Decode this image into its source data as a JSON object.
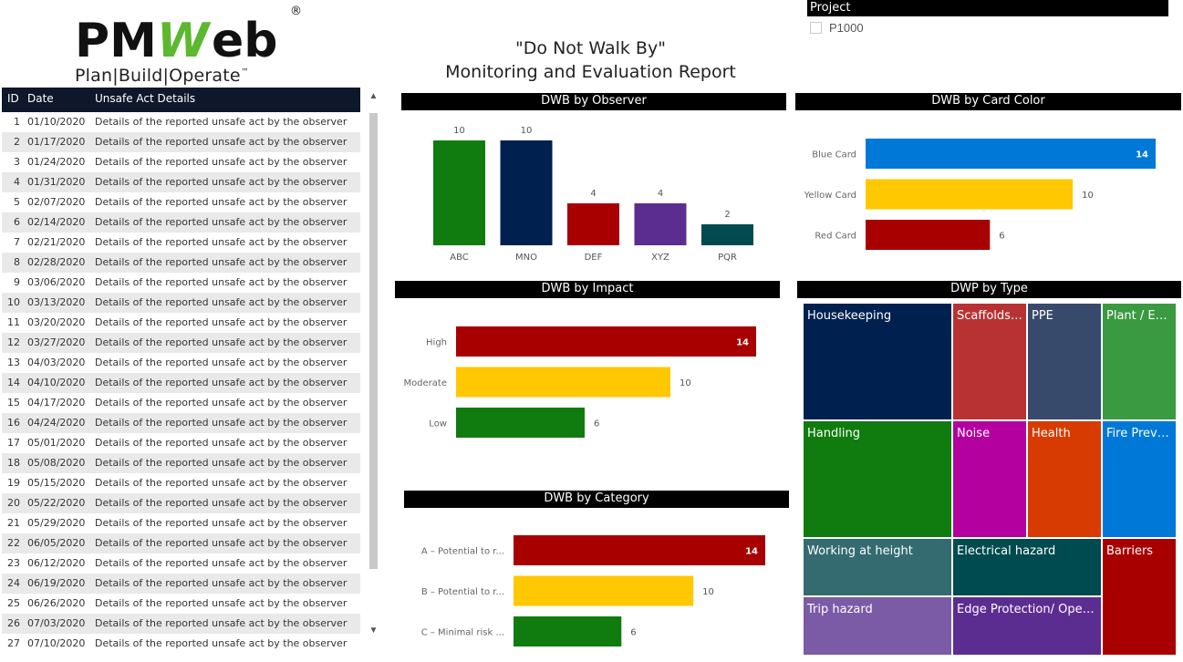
{
  "logo": {
    "brand_pm": "PM",
    "brand_web": "Web",
    "registered": "®",
    "tagline": "Plan|Build|Operate",
    "trademark": "™"
  },
  "report": {
    "title_line1": "\"Do Not Walk By\"",
    "title_line2": "Monitoring and Evaluation Report"
  },
  "filter": {
    "header": "Project",
    "options": [
      "P1000"
    ]
  },
  "table": {
    "columns": [
      "ID",
      "Date",
      "Unsafe Act Details"
    ],
    "rows": [
      [
        "1",
        "01/10/2020",
        "Details of the reported unsafe act by the observer"
      ],
      [
        "2",
        "01/17/2020",
        "Details of the reported unsafe act by the observer"
      ],
      [
        "3",
        "01/24/2020",
        "Details of the reported unsafe act by the observer"
      ],
      [
        "4",
        "01/31/2020",
        "Details of the reported unsafe act by the observer"
      ],
      [
        "5",
        "02/07/2020",
        "Details of the reported unsafe act by the observer"
      ],
      [
        "6",
        "02/14/2020",
        "Details of the reported unsafe act by the observer"
      ],
      [
        "7",
        "02/21/2020",
        "Details of the reported unsafe act by the observer"
      ],
      [
        "8",
        "02/28/2020",
        "Details of the reported unsafe act by the observer"
      ],
      [
        "9",
        "03/06/2020",
        "Details of the reported unsafe act by the observer"
      ],
      [
        "10",
        "03/13/2020",
        "Details of the reported unsafe act by the observer"
      ],
      [
        "11",
        "03/20/2020",
        "Details of the reported unsafe act by the observer"
      ],
      [
        "12",
        "03/27/2020",
        "Details of the reported unsafe act by the observer"
      ],
      [
        "13",
        "04/03/2020",
        "Details of the reported unsafe act by the observer"
      ],
      [
        "14",
        "04/10/2020",
        "Details of the reported unsafe act by the observer"
      ],
      [
        "15",
        "04/17/2020",
        "Details of the reported unsafe act by the observer"
      ],
      [
        "16",
        "04/24/2020",
        "Details of the reported unsafe act by the observer"
      ],
      [
        "17",
        "05/01/2020",
        "Details of the reported unsafe act by the observer"
      ],
      [
        "18",
        "05/08/2020",
        "Details of the reported unsafe act by the observer"
      ],
      [
        "19",
        "05/15/2020",
        "Details of the reported unsafe act by the observer"
      ],
      [
        "20",
        "05/22/2020",
        "Details of the reported unsafe act by the observer"
      ],
      [
        "21",
        "05/29/2020",
        "Details of the reported unsafe act by the observer"
      ],
      [
        "22",
        "06/05/2020",
        "Details of the reported unsafe act by the observer"
      ],
      [
        "23",
        "06/12/2020",
        "Details of the reported unsafe act by the observer"
      ],
      [
        "24",
        "06/19/2020",
        "Details of the reported unsafe act by the observer"
      ],
      [
        "25",
        "06/26/2020",
        "Details of the reported unsafe act by the observer"
      ],
      [
        "26",
        "07/03/2020",
        "Details of the reported unsafe act by the observer"
      ],
      [
        "27",
        "07/10/2020",
        "Details of the reported unsafe act by the observer"
      ]
    ]
  },
  "colors": {
    "green": "#107c10",
    "navy": "#002050",
    "red": "#a80000",
    "purple": "#5c2d91",
    "teal": "#004b50",
    "blue": "#0078d7",
    "yellow": "#ffc800"
  },
  "chart_data": [
    {
      "id": "observer",
      "type": "bar",
      "title": "DWB by Observer",
      "categories": [
        "ABC",
        "MNO",
        "DEF",
        "XYZ",
        "PQR"
      ],
      "values": [
        10,
        10,
        4,
        4,
        2
      ],
      "colors": [
        "#107c10",
        "#002050",
        "#a80000",
        "#5c2d91",
        "#004b50"
      ],
      "ylim": [
        0,
        10
      ]
    },
    {
      "id": "card_color",
      "type": "bar",
      "orientation": "horizontal",
      "title": "DWB by Card Color",
      "categories": [
        "Blue Card",
        "Yellow Card",
        "Red Card"
      ],
      "values": [
        14,
        10,
        6
      ],
      "colors": [
        "#0078d7",
        "#ffc800",
        "#a80000"
      ],
      "xlim": [
        0,
        14
      ]
    },
    {
      "id": "impact",
      "type": "bar",
      "orientation": "horizontal",
      "title": "DWB by Impact",
      "categories": [
        "High",
        "Moderate",
        "Low"
      ],
      "values": [
        14,
        10,
        6
      ],
      "colors": [
        "#a80000",
        "#ffc800",
        "#107c10"
      ],
      "xlim": [
        0,
        14
      ]
    },
    {
      "id": "category",
      "type": "bar",
      "orientation": "horizontal",
      "title": "DWB by Category",
      "categories": [
        "A – Potential to r...",
        "B – Potential to r...",
        "C – Minimal risk ..."
      ],
      "values": [
        14,
        10,
        6
      ],
      "colors": [
        "#a80000",
        "#ffc800",
        "#107c10"
      ],
      "xlim": [
        0,
        14
      ]
    },
    {
      "id": "type",
      "type": "treemap",
      "title": "DWP by Type",
      "items": [
        {
          "label": "Housekeeping",
          "color": "#002050"
        },
        {
          "label": "Scaffolds a...",
          "color": "#b83234"
        },
        {
          "label": "PPE",
          "color": "#374a6b"
        },
        {
          "label": "Plant / Equ...",
          "color": "#3a9a42"
        },
        {
          "label": "Handling",
          "color": "#107c10"
        },
        {
          "label": "Noise",
          "color": "#b4009e"
        },
        {
          "label": "Health",
          "color": "#d83b01"
        },
        {
          "label": "Fire Preven...",
          "color": "#0078d7"
        },
        {
          "label": "Working at height",
          "color": "#336b70"
        },
        {
          "label": "Electrical hazard",
          "color": "#004b50"
        },
        {
          "label": "Barriers",
          "color": "#a80000"
        },
        {
          "label": "Trip hazard",
          "color": "#7b5aa6"
        },
        {
          "label": "Edge Protection/ Openings",
          "color": "#5c2d91"
        }
      ]
    }
  ]
}
